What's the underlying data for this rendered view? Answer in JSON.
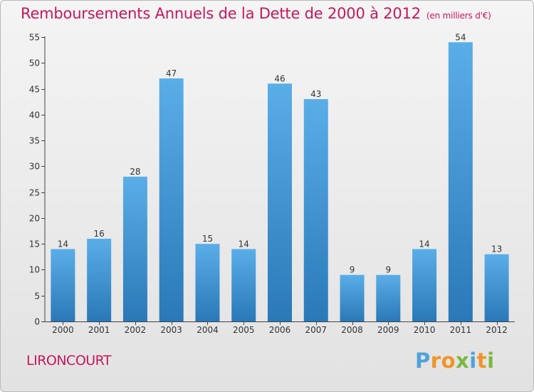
{
  "title": "Remboursements Annuels de la Dette de 2000 à 2012",
  "unit_note": "(en milliers d'€)",
  "commune": "LIRONCOURT",
  "brand": {
    "name": "Proxiti",
    "letters": [
      {
        "ch": "P",
        "color": "#4ea2d9"
      },
      {
        "ch": "r",
        "color": "#f09428"
      },
      {
        "ch": "o",
        "color": "#f09428"
      },
      {
        "ch": "x",
        "color": "#7cb83e"
      },
      {
        "ch": "i",
        "color": "#4ea2d9"
      },
      {
        "ch": "t",
        "color": "#f09428"
      },
      {
        "ch": "i",
        "color": "#7cb83e"
      }
    ]
  },
  "colors": {
    "accent": "#c5185c",
    "bar_light": "#5aaee8",
    "bar_dark": "#2a78b8",
    "axis": "#444444"
  },
  "chart_data": {
    "type": "bar",
    "title": "Remboursements Annuels de la Dette de 2000 à 2012",
    "categories": [
      "2000",
      "2001",
      "2002",
      "2003",
      "2004",
      "2005",
      "2006",
      "2007",
      "2008",
      "2009",
      "2010",
      "2011",
      "2012"
    ],
    "values": [
      14,
      16,
      28,
      47,
      15,
      14,
      46,
      43,
      9,
      9,
      14,
      54,
      13
    ],
    "ylim": [
      0,
      55
    ],
    "yticks": [
      0,
      5,
      10,
      15,
      20,
      25,
      30,
      35,
      40,
      45,
      50,
      55
    ],
    "grid": false,
    "data_labels": true
  }
}
